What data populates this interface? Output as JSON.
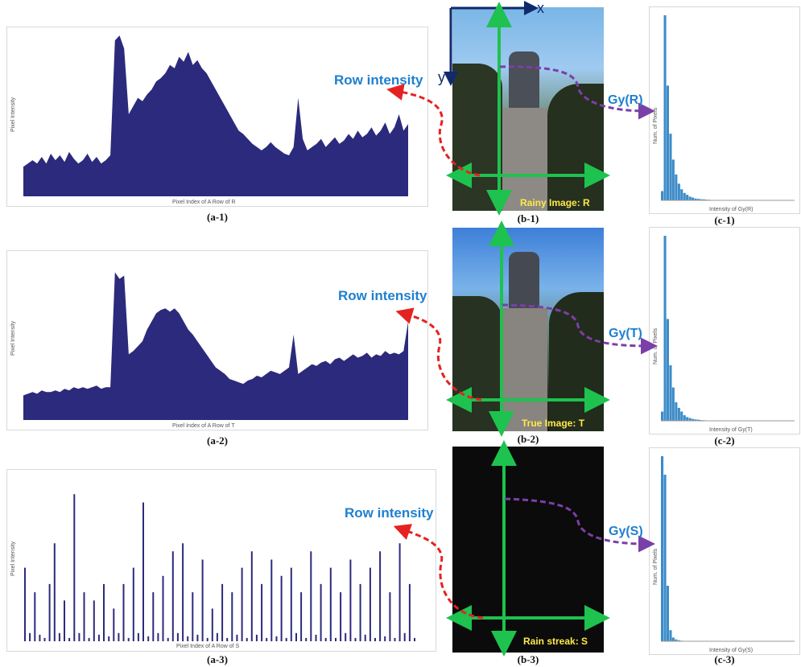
{
  "colors": {
    "fill": "#2c2a7c",
    "accent_blue": "#1f7fcf",
    "arrow_green": "#1ec24e",
    "arrow_red": "#e52222",
    "arrow_purple": "#7b3fa8",
    "hist_bar": "#3d8cc8",
    "tag_yellow": "#ffe94a",
    "axis_blue": "#102a6e"
  },
  "labels": {
    "row_intensity": "Row intensity",
    "x_axis": "x",
    "y_axis": "y"
  },
  "panels": [
    {
      "caption_a": "(a-1)",
      "caption_b": "(b-1)",
      "caption_c": "(c-1)",
      "a_xlabel": "Pixel Index of A Row of R",
      "a_ylabel": "Pixel Intensity",
      "photo_tag": "Rainy Image: R",
      "gy": "Gy(R)",
      "c_xlabel": "Intensity of Gy(R)",
      "c_ylabel": "Num. of Pixels"
    },
    {
      "caption_a": "(a-2)",
      "caption_b": "(b-2)",
      "caption_c": "(c-2)",
      "a_xlabel": "Pixel Index of A Row of T",
      "a_ylabel": "Pixel Intensity",
      "photo_tag": "True Image: T",
      "gy": "Gy(T)",
      "c_xlabel": "Intensity of Gy(T)",
      "c_ylabel": "Num. of Pixels"
    },
    {
      "caption_a": "(a-3)",
      "caption_b": "(b-3)",
      "caption_c": "(c-3)",
      "a_xlabel": "Pixel Index of A Row of S",
      "a_ylabel": "Pixel Intensity",
      "photo_tag": "Rain streak: S",
      "gy": "Gy(S)",
      "c_xlabel": "Intensity of Gy(S)",
      "c_ylabel": "Num. of Pixels"
    }
  ],
  "chart_data": [
    {
      "type": "area",
      "xlabel": "Pixel Index of A Row of R",
      "ylabel": "Pixel Intensity",
      "values": [
        0.18,
        0.2,
        0.22,
        0.2,
        0.24,
        0.2,
        0.26,
        0.22,
        0.25,
        0.21,
        0.27,
        0.23,
        0.2,
        0.22,
        0.26,
        0.21,
        0.24,
        0.2,
        0.22,
        0.25,
        0.95,
        0.98,
        0.9,
        0.5,
        0.55,
        0.6,
        0.58,
        0.62,
        0.65,
        0.7,
        0.72,
        0.75,
        0.8,
        0.78,
        0.85,
        0.82,
        0.88,
        0.8,
        0.83,
        0.78,
        0.75,
        0.7,
        0.65,
        0.6,
        0.55,
        0.5,
        0.45,
        0.4,
        0.38,
        0.35,
        0.32,
        0.3,
        0.28,
        0.3,
        0.33,
        0.3,
        0.28,
        0.26,
        0.25,
        0.3,
        0.6,
        0.35,
        0.28,
        0.3,
        0.32,
        0.35,
        0.3,
        0.33,
        0.36,
        0.32,
        0.34,
        0.38,
        0.35,
        0.4,
        0.36,
        0.38,
        0.42,
        0.37,
        0.4,
        0.45,
        0.38,
        0.42,
        0.5,
        0.4,
        0.44
      ]
    },
    {
      "type": "area",
      "xlabel": "Pixel Index of A Row of T",
      "ylabel": "Pixel Intensity",
      "values": [
        0.15,
        0.16,
        0.17,
        0.16,
        0.18,
        0.17,
        0.17,
        0.18,
        0.17,
        0.19,
        0.18,
        0.2,
        0.19,
        0.2,
        0.19,
        0.2,
        0.21,
        0.19,
        0.2,
        0.2,
        0.9,
        0.86,
        0.88,
        0.4,
        0.42,
        0.45,
        0.48,
        0.55,
        0.6,
        0.65,
        0.67,
        0.68,
        0.66,
        0.68,
        0.65,
        0.6,
        0.55,
        0.52,
        0.48,
        0.44,
        0.4,
        0.36,
        0.32,
        0.3,
        0.28,
        0.25,
        0.24,
        0.23,
        0.22,
        0.24,
        0.25,
        0.27,
        0.26,
        0.28,
        0.3,
        0.29,
        0.28,
        0.3,
        0.32,
        0.52,
        0.28,
        0.3,
        0.32,
        0.34,
        0.33,
        0.35,
        0.36,
        0.34,
        0.37,
        0.38,
        0.36,
        0.38,
        0.4,
        0.38,
        0.39,
        0.41,
        0.38,
        0.4,
        0.39,
        0.42,
        0.4,
        0.41,
        0.4,
        0.42,
        0.6
      ]
    },
    {
      "type": "bar",
      "xlabel": "Pixel Index of A Row of S",
      "ylabel": "Pixel Intensity",
      "values": [
        0.45,
        0.05,
        0.3,
        0.04,
        0.02,
        0.35,
        0.6,
        0.05,
        0.25,
        0.02,
        0.9,
        0.05,
        0.3,
        0.02,
        0.25,
        0.04,
        0.35,
        0.03,
        0.2,
        0.05,
        0.35,
        0.02,
        0.45,
        0.05,
        0.85,
        0.03,
        0.3,
        0.05,
        0.4,
        0.02,
        0.55,
        0.05,
        0.6,
        0.03,
        0.3,
        0.04,
        0.5,
        0.02,
        0.2,
        0.05,
        0.35,
        0.02,
        0.3,
        0.04,
        0.45,
        0.02,
        0.55,
        0.04,
        0.35,
        0.02,
        0.5,
        0.03,
        0.4,
        0.02,
        0.45,
        0.05,
        0.3,
        0.02,
        0.55,
        0.04,
        0.35,
        0.02,
        0.45,
        0.02,
        0.3,
        0.05,
        0.5,
        0.02,
        0.35,
        0.04,
        0.45,
        0.02,
        0.55,
        0.03,
        0.3,
        0.02,
        0.6,
        0.05,
        0.35,
        0.02
      ]
    },
    {
      "type": "bar",
      "xlabel": "Intensity of Gy(R)",
      "ylabel": "Num. of Pixels",
      "values": [
        0.05,
        1.0,
        0.62,
        0.36,
        0.22,
        0.14,
        0.09,
        0.06,
        0.04,
        0.03,
        0.02,
        0.015,
        0.01,
        0.008,
        0.006,
        0.005,
        0.004,
        0.003,
        0.002,
        0.002,
        0.001,
        0.001,
        0.001,
        0.001
      ]
    },
    {
      "type": "bar",
      "xlabel": "Intensity of Gy(T)",
      "ylabel": "Num. of Pixels",
      "values": [
        0.05,
        1.0,
        0.55,
        0.3,
        0.18,
        0.1,
        0.07,
        0.05,
        0.03,
        0.02,
        0.015,
        0.01,
        0.008,
        0.006,
        0.004,
        0.003,
        0.002,
        0.002,
        0.001,
        0.001,
        0.001,
        0.001,
        0.0,
        0.0
      ]
    },
    {
      "type": "bar",
      "xlabel": "Intensity of Gy(S)",
      "ylabel": "Num. of Pixels",
      "values": [
        1.0,
        0.9,
        0.3,
        0.06,
        0.02,
        0.01,
        0.005,
        0.003,
        0.002,
        0.001,
        0.001,
        0.0,
        0.0,
        0.0,
        0.0,
        0.0,
        0.0,
        0.0,
        0.0,
        0.0,
        0.0,
        0.0,
        0.0,
        0.0
      ]
    }
  ]
}
